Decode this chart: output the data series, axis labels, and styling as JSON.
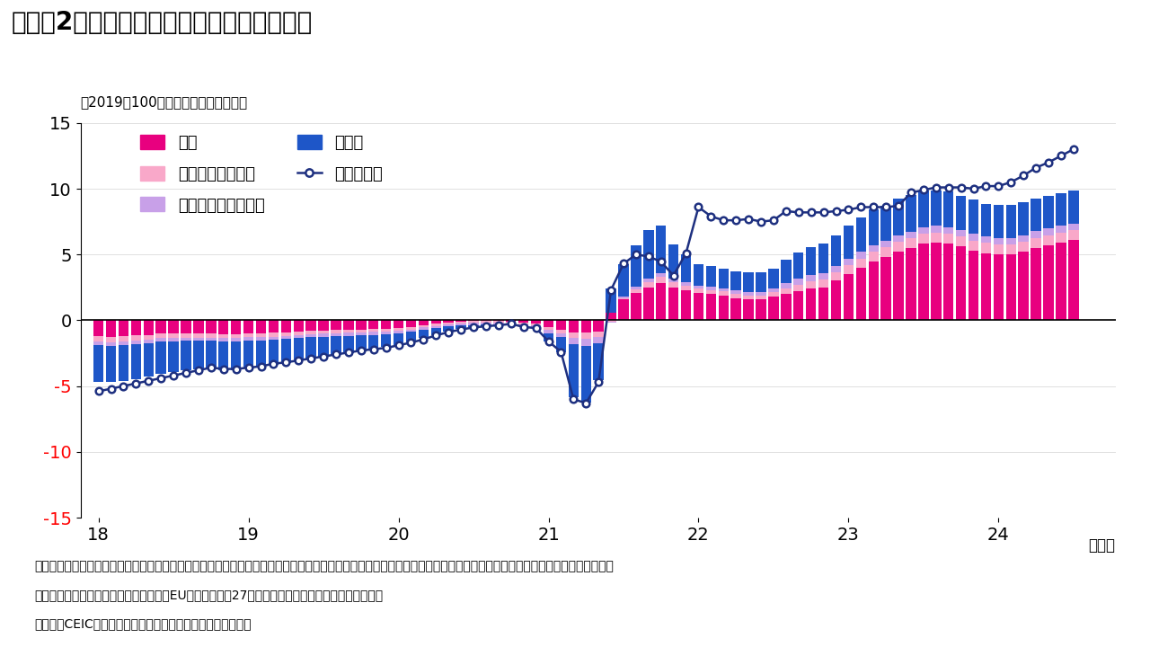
{
  "title": "（図表2）グローバル：実質小売売上の推移",
  "subtitle": "（2019＝100とし、そこからの変化）",
  "note1": "（注）中国以外のアジアは、インド、韓国、台湾、インドネシア、タイ、マレーシア、フィリピン、シンガポール。アジア以外の新興国は、ブラジル、メキシコ、トルコ、",
  "note2": "ロシア、南アフリカ。先進国は、米国、EU（欧州連合）27カ国、日本、カナダ、オーストラリア。",
  "note3": "（出所）CEICよりインベスコ作成。一部はインベスコが推計",
  "ylim": [
    -15,
    15
  ],
  "yticks": [
    -15,
    -10,
    -5,
    0,
    5,
    10,
    15
  ],
  "xtick_labels": [
    "18",
    "19",
    "20",
    "21",
    "22",
    "23",
    "24"
  ],
  "xlabel_suffix": "（年）",
  "colors": {
    "china": "#E8007F",
    "asia_ex_china": "#F9A8C9",
    "em_ex_asia": "#C8A0E8",
    "advanced": "#1E56C8",
    "global_line": "#1E3080"
  },
  "legend": {
    "china": "中国",
    "asia_ex_china": "中国以外のアジア",
    "em_ex_asia": "アジア以外の新興国",
    "advanced": "先進国",
    "global": "グローバル"
  },
  "start_year": 2018,
  "start_month": 1,
  "china_data": [
    -1.2,
    -1.25,
    -1.2,
    -1.15,
    -1.1,
    -1.0,
    -1.0,
    -1.0,
    -1.0,
    -1.0,
    -1.05,
    -1.05,
    -1.0,
    -1.0,
    -0.95,
    -0.9,
    -0.85,
    -0.8,
    -0.78,
    -0.75,
    -0.72,
    -0.7,
    -0.68,
    -0.65,
    -0.6,
    -0.5,
    -0.35,
    -0.25,
    -0.15,
    -0.08,
    -0.05,
    -0.05,
    -0.05,
    -0.1,
    -0.2,
    -0.25,
    -0.5,
    -0.7,
    -0.9,
    -0.9,
    -0.85,
    0.6,
    1.6,
    2.1,
    2.5,
    2.8,
    2.5,
    2.3,
    2.1,
    2.0,
    1.9,
    1.7,
    1.6,
    1.6,
    1.8,
    2.0,
    2.2,
    2.4,
    2.5,
    3.0,
    3.5,
    4.0,
    4.5,
    4.8,
    5.2,
    5.5,
    5.8,
    5.9,
    5.8,
    5.6,
    5.3,
    5.1,
    5.0,
    5.0,
    5.2,
    5.5,
    5.7,
    5.9,
    6.1
  ],
  "asia_ex_china_data": [
    -0.4,
    -0.4,
    -0.4,
    -0.38,
    -0.35,
    -0.33,
    -0.32,
    -0.31,
    -0.31,
    -0.31,
    -0.32,
    -0.32,
    -0.3,
    -0.3,
    -0.29,
    -0.28,
    -0.27,
    -0.26,
    -0.25,
    -0.24,
    -0.23,
    -0.22,
    -0.21,
    -0.2,
    -0.2,
    -0.19,
    -0.18,
    -0.17,
    -0.16,
    -0.15,
    -0.14,
    -0.13,
    -0.12,
    -0.12,
    -0.13,
    -0.13,
    -0.25,
    -0.3,
    -0.45,
    -0.5,
    -0.45,
    -0.1,
    0.1,
    0.25,
    0.4,
    0.5,
    0.4,
    0.35,
    0.3,
    0.3,
    0.3,
    0.3,
    0.3,
    0.3,
    0.35,
    0.4,
    0.5,
    0.55,
    0.6,
    0.65,
    0.68,
    0.7,
    0.72,
    0.73,
    0.74,
    0.75,
    0.76,
    0.77,
    0.77,
    0.77,
    0.77,
    0.77,
    0.77,
    0.77,
    0.77,
    0.77,
    0.77,
    0.77,
    0.77
  ],
  "em_ex_asia_data": [
    -0.3,
    -0.3,
    -0.3,
    -0.29,
    -0.28,
    -0.27,
    -0.27,
    -0.26,
    -0.26,
    -0.26,
    -0.27,
    -0.27,
    -0.26,
    -0.26,
    -0.25,
    -0.25,
    -0.24,
    -0.23,
    -0.23,
    -0.22,
    -0.22,
    -0.21,
    -0.21,
    -0.2,
    -0.2,
    -0.19,
    -0.18,
    -0.18,
    -0.17,
    -0.17,
    -0.16,
    -0.16,
    -0.16,
    -0.16,
    -0.17,
    -0.17,
    -0.28,
    -0.3,
    -0.5,
    -0.55,
    -0.42,
    -0.1,
    0.08,
    0.18,
    0.28,
    0.3,
    0.28,
    0.25,
    0.25,
    0.25,
    0.25,
    0.25,
    0.25,
    0.25,
    0.3,
    0.4,
    0.45,
    0.48,
    0.5,
    0.5,
    0.5,
    0.5,
    0.5,
    0.5,
    0.5,
    0.5,
    0.5,
    0.5,
    0.5,
    0.5,
    0.5,
    0.5,
    0.5,
    0.5,
    0.5,
    0.5,
    0.5,
    0.5,
    0.5
  ],
  "advanced_data": [
    -2.8,
    -2.75,
    -2.7,
    -2.65,
    -2.55,
    -2.45,
    -2.35,
    -2.25,
    -2.15,
    -2.1,
    -2.15,
    -2.15,
    -2.1,
    -2.0,
    -1.9,
    -1.8,
    -1.7,
    -1.6,
    -1.5,
    -1.4,
    -1.3,
    -1.2,
    -1.1,
    -1.0,
    -0.9,
    -0.8,
    -0.65,
    -0.5,
    -0.38,
    -0.28,
    -0.2,
    -0.12,
    -0.05,
    0.0,
    0.0,
    -0.05,
    -0.55,
    -1.1,
    -4.0,
    -4.3,
    -2.8,
    1.8,
    2.5,
    3.2,
    3.7,
    3.6,
    2.6,
    2.1,
    1.6,
    1.6,
    1.5,
    1.5,
    1.5,
    1.5,
    1.5,
    1.8,
    2.0,
    2.1,
    2.2,
    2.3,
    2.5,
    2.6,
    2.7,
    2.7,
    2.8,
    2.8,
    2.8,
    2.7,
    2.7,
    2.6,
    2.6,
    2.5,
    2.5,
    2.5,
    2.5,
    2.5,
    2.5,
    2.5,
    2.5
  ],
  "global_line": [
    -5.4,
    -5.2,
    -5.0,
    -4.8,
    -4.6,
    -4.4,
    -4.2,
    -4.0,
    -3.8,
    -3.6,
    -3.7,
    -3.7,
    -3.6,
    -3.5,
    -3.3,
    -3.2,
    -3.05,
    -2.9,
    -2.75,
    -2.6,
    -2.45,
    -2.3,
    -2.2,
    -2.1,
    -1.9,
    -1.7,
    -1.45,
    -1.15,
    -0.9,
    -0.7,
    -0.55,
    -0.45,
    -0.38,
    -0.28,
    -0.5,
    -0.6,
    -1.6,
    -2.4,
    -6.0,
    -6.3,
    -4.7,
    2.3,
    4.3,
    5.0,
    4.85,
    4.45,
    3.4,
    5.1,
    8.6,
    7.9,
    7.6,
    7.6,
    7.7,
    7.5,
    7.6,
    8.3,
    8.2,
    8.2,
    8.2,
    8.3,
    8.4,
    8.6,
    8.6,
    8.6,
    8.7,
    9.7,
    9.9,
    10.1,
    10.1,
    10.1,
    10.0,
    10.2,
    10.2,
    10.5,
    11.0,
    11.6,
    12.0,
    12.5,
    13.0
  ]
}
